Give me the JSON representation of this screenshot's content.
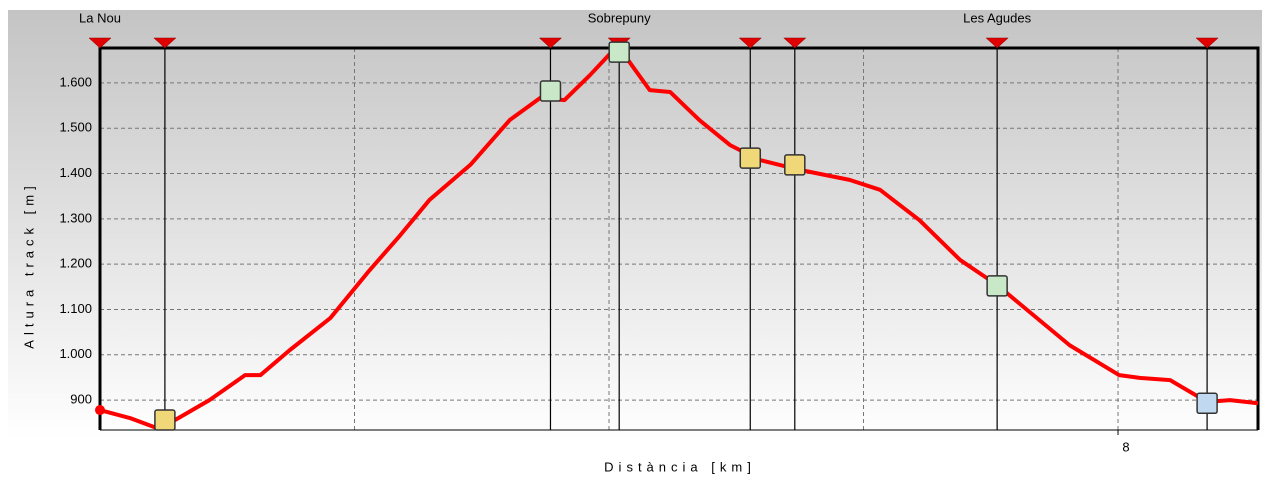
{
  "chart_data": {
    "type": "line",
    "x_label": "Distància [km]",
    "y_label": "Altura track [m]",
    "xlim": [
      0,
      9.1
    ],
    "xticks": [
      8
    ],
    "x_grid_lines": [
      2,
      4,
      6,
      8
    ],
    "ylim": [
      834,
      1677
    ],
    "yticks": [
      {
        "value": 900,
        "label": "900"
      },
      {
        "value": 1000,
        "label": "1.000"
      },
      {
        "value": 1100,
        "label": "1.100"
      },
      {
        "value": 1200,
        "label": "1.200"
      },
      {
        "value": 1300,
        "label": "1.300"
      },
      {
        "value": 1400,
        "label": "1.400"
      },
      {
        "value": 1500,
        "label": "1.500"
      },
      {
        "value": 1600,
        "label": "1.600"
      }
    ],
    "grid": true,
    "series": [
      {
        "name": "track",
        "color": "#ff0000",
        "x": [
          0,
          0.24,
          0.43,
          0.59,
          0.86,
          1.14,
          1.26,
          1.49,
          1.81,
          2.12,
          2.36,
          2.59,
          2.91,
          3.22,
          3.46,
          3.65,
          3.85,
          4.02,
          4.12,
          4.32,
          4.48,
          4.71,
          4.95,
          5.18,
          5.5,
          5.89,
          6.13,
          6.44,
          6.76,
          7.05,
          7.38,
          7.62,
          8.01,
          8.17,
          8.41,
          8.7,
          8.88,
          9.1
        ],
        "values": [
          878,
          860,
          840,
          856,
          900,
          955,
          955,
          1010,
          1081,
          1187,
          1264,
          1342,
          1419,
          1518,
          1567,
          1562,
          1617,
          1668,
          1662,
          1584,
          1580,
          1518,
          1463,
          1430,
          1408,
          1386,
          1364,
          1297,
          1209,
          1154,
          1077,
          1021,
          955,
          949,
          944,
          896,
          900,
          893
        ]
      }
    ],
    "waypoints": {
      "x": [
        0,
        0.51,
        3.54,
        4.08,
        5.11,
        5.46,
        7.05,
        8.7
      ],
      "values": [
        878,
        856,
        1582,
        1668,
        1434,
        1419,
        1152,
        893
      ],
      "labels": [
        "La Nou",
        null,
        null,
        "Sobrepuny",
        null,
        null,
        "Les Agudes",
        null
      ],
      "colors": [
        "#ff0000",
        "#f0d878",
        "#c8e8c8",
        "#c8e8c8",
        "#f0d878",
        "#f0d878",
        "#c8e8c8",
        "#c0d8f0"
      ]
    }
  }
}
